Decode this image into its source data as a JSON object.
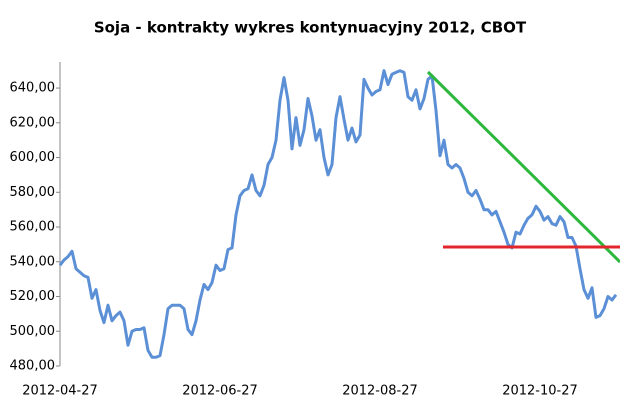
{
  "chart_data": {
    "type": "line",
    "title": "Soja - kontrakty wykres kontynuacyjny 2012, CBOT",
    "categories": [
      "2012-04-27",
      null,
      null,
      null,
      null,
      null,
      null,
      null,
      null,
      null,
      null,
      null,
      null,
      null,
      null,
      null,
      null,
      null,
      null,
      null,
      null,
      null,
      null,
      null,
      null,
      null,
      null,
      null,
      null,
      null,
      null,
      null,
      null,
      null,
      null,
      null,
      null,
      null,
      null,
      null,
      "2012-06-27",
      null,
      null,
      null,
      null,
      null,
      null,
      null,
      null,
      null,
      null,
      null,
      null,
      null,
      null,
      null,
      null,
      null,
      null,
      null,
      null,
      null,
      null,
      null,
      null,
      null,
      null,
      null,
      null,
      null,
      null,
      null,
      null,
      null,
      null,
      null,
      null,
      null,
      null,
      null,
      "2012-08-27",
      null,
      null,
      null,
      null,
      null,
      null,
      null,
      null,
      null,
      null,
      null,
      null,
      null,
      null,
      null,
      null,
      null,
      null,
      null,
      null,
      null,
      null,
      null,
      null,
      null,
      null,
      null,
      null,
      null,
      null,
      null,
      null,
      null,
      null,
      null,
      null,
      null,
      null,
      null,
      "2012-10-27",
      null,
      null,
      null,
      null,
      null,
      null,
      null,
      null,
      null,
      null,
      null,
      null,
      null,
      null,
      null,
      null,
      null,
      null,
      null
    ],
    "series": [
      {
        "color": "#5b8fd6",
        "values": [
          538,
          541,
          543,
          546,
          536,
          534,
          532,
          531,
          519,
          524,
          512,
          505,
          515,
          506,
          509,
          511,
          506,
          492,
          500,
          501,
          501,
          502,
          489,
          485,
          485,
          486,
          498,
          513,
          515,
          515,
          515,
          513,
          501,
          498,
          506,
          518,
          527,
          524,
          528,
          538,
          535,
          536,
          547,
          548,
          567,
          578,
          581,
          582,
          590,
          581,
          578,
          584,
          596,
          600,
          610,
          633,
          646,
          633,
          605,
          623,
          607,
          616,
          634,
          624,
          610,
          616,
          600,
          590,
          596,
          623,
          635,
          622,
          610,
          617,
          609,
          613,
          645,
          640,
          636,
          638,
          639,
          650,
          642,
          648,
          649,
          650,
          649,
          635,
          633,
          639,
          628,
          634,
          645,
          647,
          627,
          601,
          610,
          596,
          594,
          596,
          594,
          588,
          580,
          578,
          581,
          576,
          570,
          570,
          567,
          569,
          563,
          557,
          550,
          548,
          557,
          556,
          561,
          565,
          567,
          572,
          569,
          564,
          566,
          562,
          561,
          566,
          563,
          554,
          554,
          549,
          536,
          524,
          519,
          525,
          508,
          509,
          513,
          520,
          518,
          521
        ]
      }
    ],
    "ylim": [
      480,
      655
    ],
    "yticks": [
      {
        "value": 640,
        "label": "640,00"
      },
      {
        "value": 620,
        "label": "620,00"
      },
      {
        "value": 600,
        "label": "600,00"
      },
      {
        "value": 580,
        "label": "580,00"
      },
      {
        "value": 560,
        "label": "560,00"
      },
      {
        "value": 540,
        "label": "540,00"
      },
      {
        "value": 520,
        "label": "520,00"
      },
      {
        "value": 500,
        "label": "500,00"
      },
      {
        "value": 480,
        "label": "480,00"
      }
    ]
  }
}
